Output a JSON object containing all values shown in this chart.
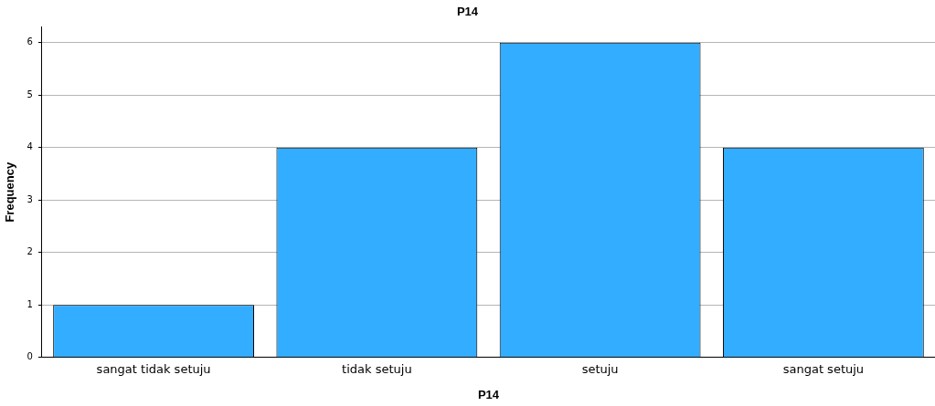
{
  "chart_data": {
    "type": "bar",
    "title": "P14",
    "xlabel": "P14",
    "ylabel": "Frequency",
    "categories": [
      "sangat tidak setuju",
      "tidak setuju",
      "setuju",
      "sangat setuju"
    ],
    "values": [
      1,
      4,
      6,
      4
    ],
    "color": "#33adff",
    "ylim": [
      0,
      6.3
    ],
    "yticks": [
      0,
      1,
      2,
      3,
      4,
      5,
      6
    ],
    "grid": "y"
  }
}
